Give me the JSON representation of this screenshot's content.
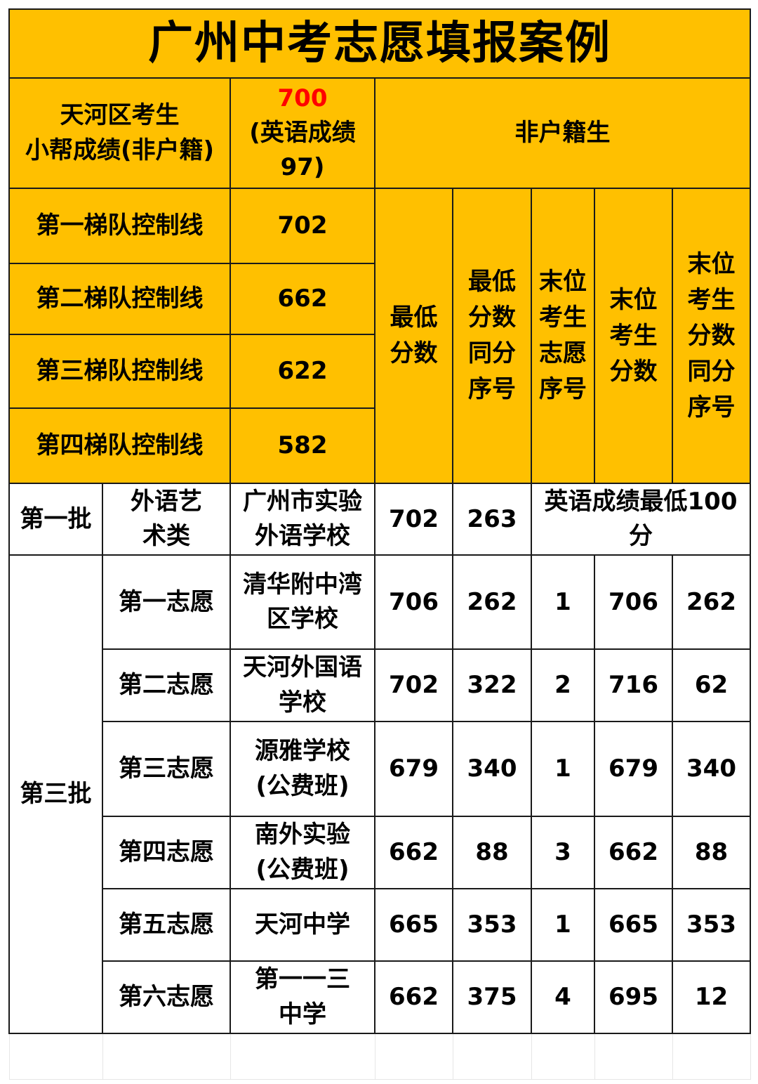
{
  "title": "广州中考志愿填报案例",
  "header": {
    "student_label": "天河区考生\n小帮成绩(非户籍)",
    "score": "700",
    "english_note": "(英语成绩97)",
    "category": "非户籍生"
  },
  "tiers": [
    {
      "label": "第一梯队控制线",
      "value": "702"
    },
    {
      "label": "第二梯队控制线",
      "value": "662"
    },
    {
      "label": "第三梯队控制线",
      "value": "622"
    },
    {
      "label": "第四梯队控制线",
      "value": "582"
    }
  ],
  "columns": [
    "最低分数",
    "最低分数同分序号",
    "末位考生志愿序号",
    "末位考生分数",
    "末位考生分数同分序号"
  ],
  "batch1": {
    "batch": "第一批",
    "type": "外语艺术类",
    "school": "广州市实验外语学校",
    "min_score": "702",
    "min_rank": "263",
    "note": "英语成绩最低100分"
  },
  "batch3": {
    "batch": "第三批",
    "rows": [
      {
        "choice": "第一志愿",
        "school": "清华附中湾区学校",
        "min_score": "706",
        "min_rank": "262",
        "last_choice": "1",
        "last_score": "706",
        "last_rank": "262"
      },
      {
        "choice": "第二志愿",
        "school": "天河外国语学校",
        "min_score": "702",
        "min_rank": "322",
        "last_choice": "2",
        "last_score": "716",
        "last_rank": "62"
      },
      {
        "choice": "第三志愿",
        "school": "源雅学校(公费班)",
        "min_score": "679",
        "min_rank": "340",
        "last_choice": "1",
        "last_score": "679",
        "last_rank": "340"
      },
      {
        "choice": "第四志愿",
        "school": "南外实验(公费班)",
        "min_score": "662",
        "min_rank": "88",
        "last_choice": "3",
        "last_score": "662",
        "last_rank": "88"
      },
      {
        "choice": "第五志愿",
        "school": "天河中学",
        "min_score": "665",
        "min_rank": "353",
        "last_choice": "1",
        "last_score": "665",
        "last_rank": "353"
      },
      {
        "choice": "第六志愿",
        "school": "第一一三中学",
        "min_score": "662",
        "min_rank": "375",
        "last_choice": "4",
        "last_score": "695",
        "last_rank": "12"
      }
    ]
  },
  "colors": {
    "header_bg": "#FFC000",
    "highlight": "#FF0000"
  }
}
